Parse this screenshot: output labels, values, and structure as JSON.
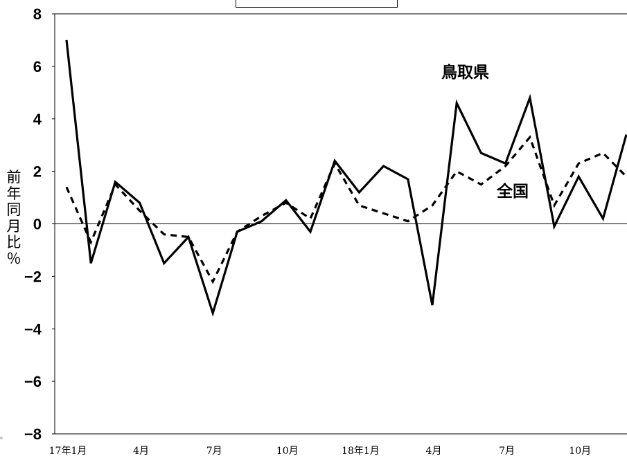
{
  "chart_data": {
    "type": "line",
    "title": "",
    "ylabel": "前年同月比％",
    "ylim": [
      -8,
      8
    ],
    "yticks": [
      -8,
      -6,
      -4,
      -2,
      0,
      2,
      4,
      6,
      8
    ],
    "ytick_labels": [
      "−8",
      "−6",
      "−4",
      "−2",
      "0",
      "2",
      "4",
      "6",
      "8"
    ],
    "xtick_labels": [
      {
        "index": 0,
        "label": "17年1月"
      },
      {
        "index": 3,
        "label": "4月"
      },
      {
        "index": 6,
        "label": "7月"
      },
      {
        "index": 9,
        "label": "10月"
      },
      {
        "index": 12,
        "label": "18年1月"
      },
      {
        "index": 15,
        "label": "4月"
      },
      {
        "index": 18,
        "label": "7月"
      },
      {
        "index": 21,
        "label": "10月"
      }
    ],
    "n_points": 24,
    "series": [
      {
        "name": "鳥取県",
        "style": "solid",
        "color": "#000000",
        "values": [
          7.0,
          -1.5,
          1.6,
          0.8,
          -1.5,
          -0.5,
          -3.4,
          -0.3,
          0.1,
          0.9,
          -0.3,
          2.4,
          1.2,
          2.2,
          1.7,
          -3.1,
          4.6,
          2.7,
          2.3,
          4.8,
          -0.1,
          1.8,
          0.2,
          3.4
        ]
      },
      {
        "name": "全国",
        "style": "dashed",
        "color": "#000000",
        "values": [
          1.4,
          -0.7,
          1.5,
          0.5,
          -0.4,
          -0.5,
          -2.2,
          -0.3,
          0.3,
          0.8,
          0.2,
          2.3,
          0.7,
          0.4,
          0.1,
          0.7,
          2.0,
          1.5,
          2.2,
          3.3,
          0.7,
          2.3,
          2.7,
          1.8
        ]
      }
    ],
    "annotations": [
      {
        "text": "鳥取県",
        "series": "鳥取県"
      },
      {
        "text": "全国",
        "series": "全国"
      }
    ],
    "stray_mark": "。"
  }
}
